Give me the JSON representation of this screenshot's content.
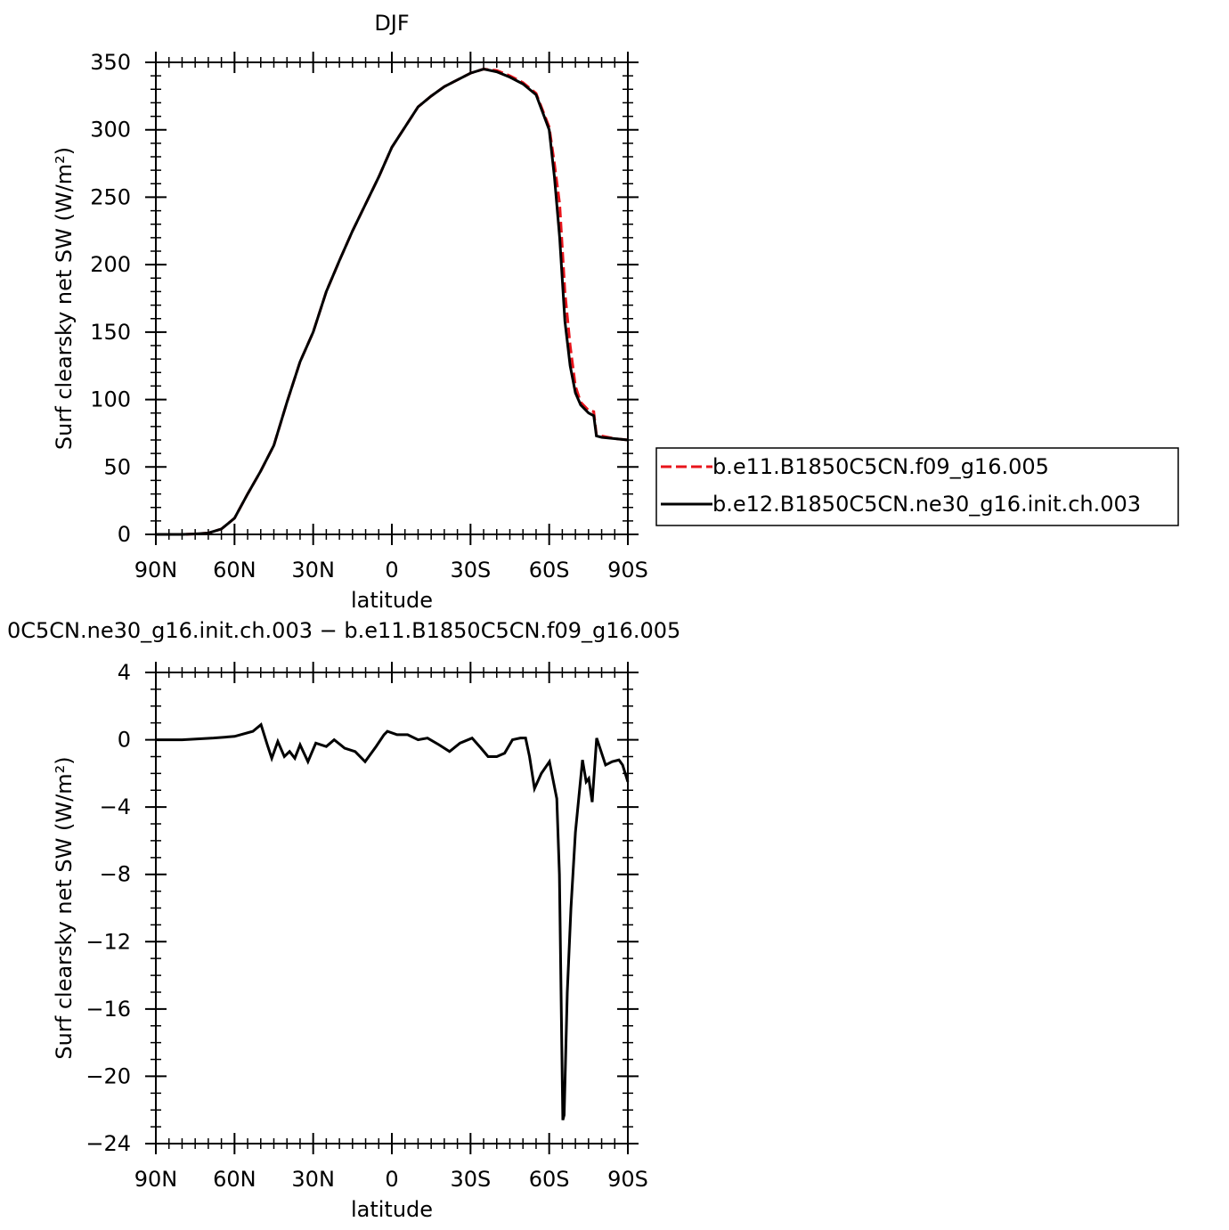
{
  "chart_data": [
    {
      "type": "line",
      "title": "DJF",
      "xlabel": "latitude",
      "ylabel": "Surf clearsky net SW (W/m²)",
      "xlim": [
        90,
        -90
      ],
      "xticks": [
        {
          "value": 90,
          "label": "90N"
        },
        {
          "value": 60,
          "label": "60N"
        },
        {
          "value": 30,
          "label": "30N"
        },
        0,
        {
          "value": -30,
          "label": "30S"
        },
        {
          "value": -60,
          "label": "60S"
        },
        {
          "value": -90,
          "label": "90S"
        }
      ],
      "xminorticks": [
        90,
        85,
        80,
        75,
        70,
        65,
        60,
        55,
        50,
        45,
        40,
        35,
        30,
        25,
        20,
        15,
        10,
        5,
        0,
        -5,
        -10,
        -15,
        -20,
        -25,
        -30,
        -35,
        -40,
        -45,
        -50,
        -55,
        -60,
        -65,
        -70,
        -75,
        -80,
        -85,
        -90
      ],
      "ylim": [
        0,
        350
      ],
      "yticks": [
        0,
        50,
        100,
        150,
        200,
        250,
        300,
        350
      ],
      "yminorticks": [
        0,
        10,
        20,
        30,
        40,
        50,
        60,
        70,
        80,
        90,
        100,
        110,
        120,
        130,
        140,
        150,
        160,
        170,
        180,
        190,
        200,
        210,
        220,
        230,
        240,
        250,
        260,
        270,
        280,
        290,
        300,
        310,
        320,
        330,
        340,
        350
      ],
      "legend": "right",
      "series": [
        {
          "name": "b.e11.B1850C5CN.f09_g16.005",
          "color": "#e8141b",
          "dash": true,
          "x": [
            90,
            85,
            80,
            75,
            70,
            65,
            60,
            55,
            50,
            45,
            40,
            35,
            30,
            25,
            20,
            15,
            10,
            5,
            0,
            -5,
            -10,
            -15,
            -20,
            -25,
            -30,
            -35,
            -40,
            -45,
            -50,
            -55,
            -60,
            -62,
            -64,
            -66,
            -68,
            -70,
            -72,
            -75,
            -77,
            -78,
            -80,
            -85,
            -90
          ],
          "values": [
            0,
            0,
            0,
            0.3,
            1,
            4,
            12,
            30,
            47,
            66,
            98,
            128,
            150,
            180,
            203,
            225,
            245,
            265,
            287,
            302,
            317,
            325,
            332,
            337,
            342,
            345,
            344,
            340,
            335,
            327,
            302,
            275,
            245,
            180,
            140,
            110,
            98,
            92,
            91,
            74,
            73,
            71,
            70
          ]
        },
        {
          "name": "b.e12.B1850C5CN.ne30_g16.init.ch.003",
          "color": "#000000",
          "dash": false,
          "x": [
            90,
            85,
            80,
            75,
            70,
            65,
            60,
            55,
            50,
            45,
            40,
            35,
            30,
            25,
            20,
            15,
            10,
            5,
            0,
            -5,
            -10,
            -15,
            -20,
            -25,
            -30,
            -35,
            -40,
            -45,
            -50,
            -55,
            -60,
            -62,
            -64,
            -66,
            -68,
            -70,
            -72,
            -75,
            -77,
            -78,
            -80,
            -85,
            -90
          ],
          "values": [
            0,
            0,
            0,
            0.3,
            1,
            4,
            12,
            30,
            47,
            66,
            98,
            128,
            150,
            180,
            203,
            225,
            245,
            265,
            287,
            302,
            317,
            325,
            332,
            337,
            342,
            345,
            343,
            339,
            334,
            326,
            300,
            265,
            220,
            158,
            125,
            105,
            96,
            90,
            88,
            73,
            72,
            71,
            70
          ]
        }
      ]
    },
    {
      "type": "line",
      "title": "0C5CN.ne30_g16.init.ch.003 − b.e11.B1850C5CN.f09_g16.005",
      "xlabel": "latitude",
      "ylabel": "Surf clearsky net SW (W/m²)",
      "xlim": [
        90,
        -90
      ],
      "xticks": [
        {
          "value": 90,
          "label": "90N"
        },
        {
          "value": 60,
          "label": "60N"
        },
        {
          "value": 30,
          "label": "30N"
        },
        0,
        {
          "value": -30,
          "label": "30S"
        },
        {
          "value": -60,
          "label": "60S"
        },
        {
          "value": -90,
          "label": "90S"
        }
      ],
      "xminorticks": [
        90,
        85,
        80,
        75,
        70,
        65,
        60,
        55,
        50,
        45,
        40,
        35,
        30,
        25,
        20,
        15,
        10,
        5,
        0,
        -5,
        -10,
        -15,
        -20,
        -25,
        -30,
        -35,
        -40,
        -45,
        -50,
        -55,
        -60,
        -65,
        -70,
        -75,
        -80,
        -85,
        -90
      ],
      "ylim": [
        -24,
        4
      ],
      "yticks": [
        4,
        0,
        {
          "value": -4,
          "label": "−4"
        },
        {
          "value": -8,
          "label": "−8"
        },
        {
          "value": -12,
          "label": "−12"
        },
        {
          "value": -16,
          "label": "−16"
        },
        {
          "value": -20,
          "label": "−20"
        },
        {
          "value": -24,
          "label": "−24"
        }
      ],
      "yminorticks": [
        4,
        3,
        2,
        1,
        0,
        -1,
        -2,
        -3,
        -4,
        -5,
        -6,
        -7,
        -8,
        -9,
        -10,
        -11,
        -12,
        -13,
        -14,
        -15,
        -16,
        -17,
        -18,
        -19,
        -20,
        -21,
        -22,
        -23,
        -24
      ],
      "series": [
        {
          "color": "#000000",
          "dash": false,
          "x": [
            90,
            80,
            68,
            60,
            57.7,
            53,
            49.9,
            47.5,
            45.8,
            43.5,
            41,
            39,
            37,
            35,
            32,
            29,
            25,
            22,
            18,
            14,
            10.2,
            6,
            3,
            1.7,
            -2,
            -6,
            -10,
            -13.6,
            -18,
            -22,
            -26,
            -30.6,
            -34,
            -36.7,
            -40,
            -43,
            -46,
            -49,
            -51,
            -52.5,
            -54.4,
            -57,
            -60.1,
            -62.9,
            -63.9,
            -65.2,
            -65.7,
            -66.9,
            -68.3,
            -70,
            -72.7,
            -74.1,
            -75.1,
            -76.4,
            -78.1,
            -81.5,
            -84,
            -86.6,
            -88,
            -90
          ],
          "values": [
            0,
            0,
            0.1,
            0.2,
            0.3,
            0.5,
            0.9,
            -0.3,
            -1.1,
            -0.1,
            -1,
            -0.7,
            -1.1,
            -0.3,
            -1.3,
            -0.2,
            -0.4,
            0,
            -0.5,
            -0.7,
            -1.3,
            -0.4,
            0.3,
            0.5,
            0.3,
            0.3,
            0,
            0.1,
            -0.3,
            -0.7,
            -0.2,
            0.1,
            -0.5,
            -1,
            -1,
            -0.8,
            0,
            0.1,
            0.1,
            -1,
            -2.9,
            -2,
            -1.3,
            -3.5,
            -8,
            -22.6,
            -22.3,
            -15,
            -10,
            -5.5,
            -1.2,
            -2.5,
            -2.3,
            -3.7,
            0.1,
            -1.5,
            -1.3,
            -1.2,
            -1.5,
            -2.5
          ]
        }
      ]
    }
  ]
}
